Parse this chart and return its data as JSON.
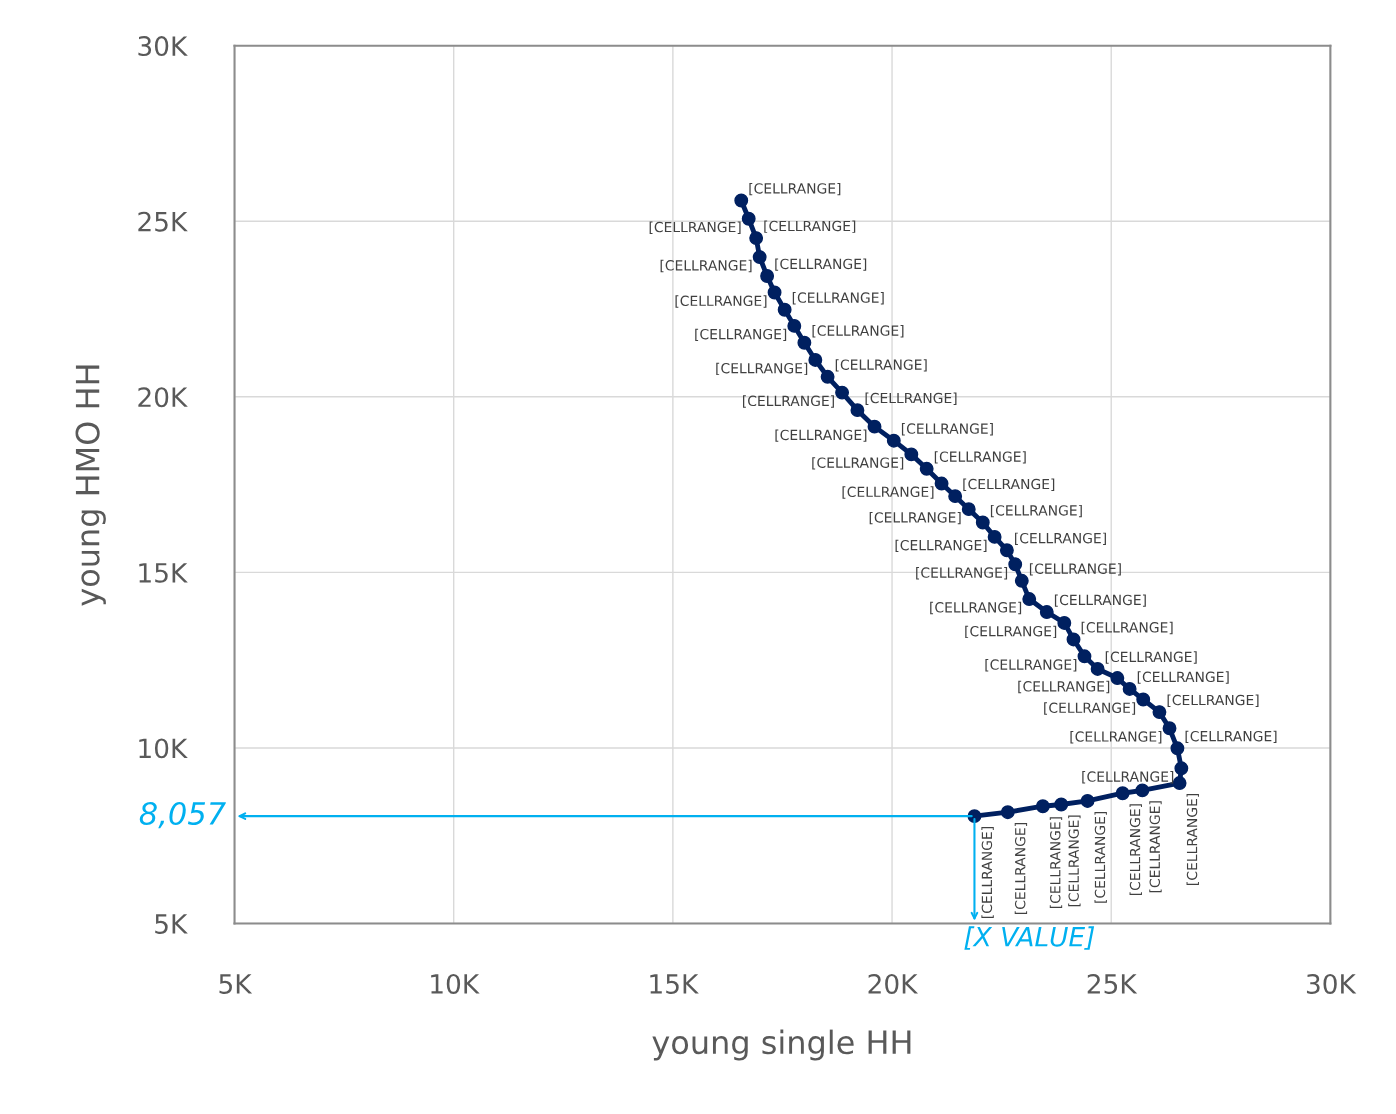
{
  "chart_data": {
    "type": "line",
    "xlabel": "young single HH",
    "ylabel": "young HMO HH",
    "x": [
      16560,
      16730,
      16900,
      16980,
      17150,
      17320,
      17550,
      17770,
      18000,
      18250,
      18530,
      18860,
      19210,
      19600,
      20040,
      20440,
      20790,
      21130,
      21440,
      21750,
      22070,
      22340,
      22620,
      22810,
      22960,
      23130,
      23530,
      23930,
      24140,
      24390,
      24690,
      25140,
      25420,
      25730,
      26100,
      26330,
      26510,
      26600,
      26560,
      25710,
      25260,
      24460,
      23860,
      23440,
      22640,
      21880
    ],
    "series": [
      {
        "color": "#002060",
        "values": [
          25590,
          25070,
          24520,
          23980,
          23440,
          22970,
          22480,
          22020,
          21540,
          21050,
          20570,
          20120,
          19620,
          19150,
          18750,
          18360,
          17950,
          17530,
          17170,
          16800,
          16420,
          16010,
          15630,
          15230,
          14760,
          14240,
          13870,
          13560,
          13090,
          12610,
          12250,
          11990,
          11680,
          11380,
          11020,
          10560,
          9990,
          9420,
          9000,
          8790,
          8710,
          8490,
          8390,
          8340,
          8170,
          8057
        ],
        "value_labels": [
          "[CELLRANGE]",
          "[CELLRANGE]",
          "[CELLRANGE]",
          "[CELLRANGE]",
          "[CELLRANGE]",
          "[CELLRANGE]",
          "[CELLRANGE]",
          "[CELLRANGE]",
          "[CELLRANGE]",
          "[CELLRANGE]",
          "[CELLRANGE]",
          "[CELLRANGE]",
          "[CELLRANGE]",
          "[CELLRANGE]",
          "[CELLRANGE]",
          "[CELLRANGE]",
          "[CELLRANGE]",
          "[CELLRANGE]",
          "[CELLRANGE]",
          "[CELLRANGE]",
          "[CELLRANGE]",
          "[CELLRANGE]",
          "[CELLRANGE]",
          "[CELLRANGE]",
          "[CELLRANGE]",
          "[CELLRANGE]",
          "[CELLRANGE]",
          "[CELLRANGE]",
          "[CELLRANGE]",
          "[CELLRANGE]",
          "[CELLRANGE]",
          "[CELLRANGE]",
          "[CELLRANGE]",
          "[CELLRANGE]",
          "[CELLRANGE]",
          "[CELLRANGE]",
          "[CELLRANGE]",
          "[CELLRANGE]",
          "[CELLRANGE]",
          "[CELLRANGE]",
          "[CELLRANGE]",
          "[CELLRANGE]",
          "[CELLRANGE]",
          "[CELLRANGE]",
          "[CELLRANGE]",
          "[CELLRANGE]"
        ]
      }
    ],
    "xlim": [
      5000,
      30000
    ],
    "ylim": [
      5000,
      30000
    ],
    "xticks": [
      {
        "value": 5000,
        "label": "5K"
      },
      {
        "value": 10000,
        "label": "10K"
      },
      {
        "value": 15000,
        "label": "15K"
      },
      {
        "value": 20000,
        "label": "20K"
      },
      {
        "value": 25000,
        "label": "25K"
      },
      {
        "value": 30000,
        "label": "30K"
      }
    ],
    "yticks": [
      {
        "value": 5000,
        "label": "5K"
      },
      {
        "value": 10000,
        "label": "10K"
      },
      {
        "value": 15000,
        "label": "15K"
      },
      {
        "value": 20000,
        "label": "20K"
      },
      {
        "value": 25000,
        "label": "25K"
      },
      {
        "value": 30000,
        "label": "30K"
      }
    ],
    "annotations": [
      {
        "text": "8,057",
        "x": 21880,
        "y": 8057
      },
      {
        "text": "[X VALUE]",
        "x": 21880,
        "y": 8057
      }
    ],
    "grid": true,
    "marker": "circle",
    "line_style": "solid"
  }
}
